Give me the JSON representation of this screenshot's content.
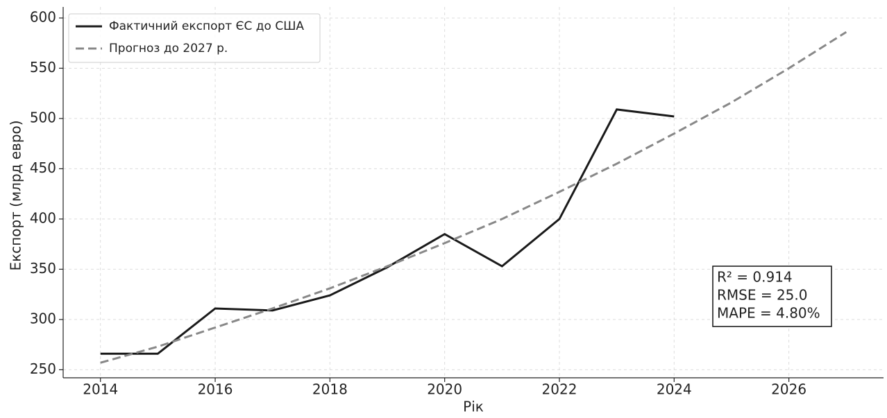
{
  "chart_data": {
    "type": "line",
    "x_label": "Рік",
    "y_label": "Експорт (млрд евро)",
    "x": [
      2014,
      2015,
      2016,
      2017,
      2018,
      2019,
      2020,
      2021,
      2022,
      2023,
      2024,
      2025,
      2026,
      2027
    ],
    "series": [
      {
        "name": "Фактичний експорт ЄС до США",
        "color": "#1a1a1a",
        "dash": false,
        "values": [
          266,
          266,
          311,
          309,
          324,
          352,
          385,
          353,
          400,
          509,
          502,
          null,
          null,
          null
        ]
      },
      {
        "name": "Прогноз до 2027 р.",
        "color": "#888888",
        "dash": true,
        "values": [
          257,
          273,
          292,
          311,
          331,
          353,
          376,
          400,
          427,
          455,
          485,
          516,
          550,
          586
        ]
      }
    ],
    "xlim": [
      2013.35,
      2027.65
    ],
    "ylim": [
      242,
      611
    ],
    "xticks": [
      2014,
      2016,
      2018,
      2020,
      2022,
      2024,
      2026
    ],
    "yticks": [
      250,
      300,
      350,
      400,
      450,
      500,
      550,
      600
    ],
    "grid": true,
    "legend_position": "upper-left",
    "annotation": [
      "R² = 0.914",
      "RMSE = 25.0",
      "MAPE = 4.80%"
    ]
  }
}
